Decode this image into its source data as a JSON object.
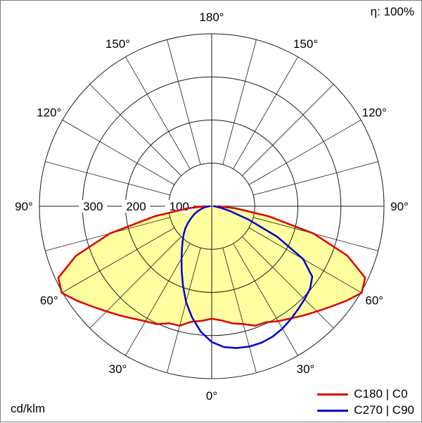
{
  "chart_data": {
    "type": "polar",
    "subtype": "photometric_intensity_distribution",
    "eta_label": "η: 100%",
    "unit_label": "cd/klm",
    "r_max": 400,
    "r_rings": [
      100,
      200,
      300,
      400
    ],
    "grid_angle_step_deg": 15,
    "radial_tick_labels": [
      {
        "value": 100,
        "text": "100"
      },
      {
        "value": 200,
        "text": "200"
      },
      {
        "value": 300,
        "text": "300"
      }
    ],
    "angle_labels": [
      {
        "angle": 0,
        "text": "0°"
      },
      {
        "angle": 30,
        "text": "30°"
      },
      {
        "angle": 60,
        "text": "60°"
      },
      {
        "angle": 90,
        "text": "90°"
      },
      {
        "angle": 120,
        "text": "120°"
      },
      {
        "angle": 150,
        "text": "150°"
      },
      {
        "angle": 180,
        "text": "180°"
      }
    ],
    "colors": {
      "c0": "#dd0000",
      "c90": "#0000cc",
      "fill": "#ffffa0",
      "grid": "#1a1a1a"
    },
    "series": [
      {
        "name": "C180 | C0",
        "plane": "c180-c0",
        "color_key": "c0",
        "filled": true,
        "points": [
          [
            -90,
            15
          ],
          [
            -85,
            55
          ],
          [
            -80,
            135
          ],
          [
            -75,
            245
          ],
          [
            -70,
            335
          ],
          [
            -65,
            393
          ],
          [
            -60,
            402
          ],
          [
            -55,
            382
          ],
          [
            -50,
            362
          ],
          [
            -45,
            345
          ],
          [
            -40,
            331
          ],
          [
            -35,
            318
          ],
          [
            -30,
            308
          ],
          [
            -25,
            302
          ],
          [
            -20,
            289
          ],
          [
            -15,
            287
          ],
          [
            -10,
            272
          ],
          [
            -5,
            267
          ],
          [
            0,
            261
          ],
          [
            5,
            266
          ],
          [
            10,
            276
          ],
          [
            15,
            283
          ],
          [
            20,
            295
          ],
          [
            25,
            297
          ],
          [
            30,
            308
          ],
          [
            35,
            318
          ],
          [
            40,
            331
          ],
          [
            45,
            345
          ],
          [
            50,
            362
          ],
          [
            55,
            382
          ],
          [
            60,
            402
          ],
          [
            65,
            393
          ],
          [
            70,
            335
          ],
          [
            75,
            245
          ],
          [
            80,
            135
          ],
          [
            85,
            55
          ],
          [
            90,
            15
          ]
        ]
      },
      {
        "name": "C270 | C90",
        "plane": "c270-c90",
        "color_key": "c90",
        "filled": false,
        "points": [
          [
            -90,
            5
          ],
          [
            -85,
            10
          ],
          [
            -80,
            18
          ],
          [
            -75,
            26
          ],
          [
            -70,
            35
          ],
          [
            -65,
            45
          ],
          [
            -60,
            55
          ],
          [
            -55,
            67
          ],
          [
            -50,
            80
          ],
          [
            -45,
            92
          ],
          [
            -40,
            105
          ],
          [
            -35,
            120
          ],
          [
            -30,
            140
          ],
          [
            -25,
            165
          ],
          [
            -20,
            195
          ],
          [
            -15,
            230
          ],
          [
            -10,
            262
          ],
          [
            -5,
            292
          ],
          [
            0,
            315
          ],
          [
            5,
            328
          ],
          [
            10,
            334
          ],
          [
            15,
            337
          ],
          [
            20,
            337
          ],
          [
            25,
            334
          ],
          [
            30,
            328
          ],
          [
            35,
            320
          ],
          [
            40,
            312
          ],
          [
            45,
            305
          ],
          [
            50,
            298
          ],
          [
            55,
            285
          ],
          [
            60,
            245
          ],
          [
            65,
            168
          ],
          [
            70,
            92
          ],
          [
            75,
            45
          ],
          [
            80,
            22
          ],
          [
            85,
            10
          ],
          [
            90,
            5
          ]
        ]
      }
    ]
  }
}
